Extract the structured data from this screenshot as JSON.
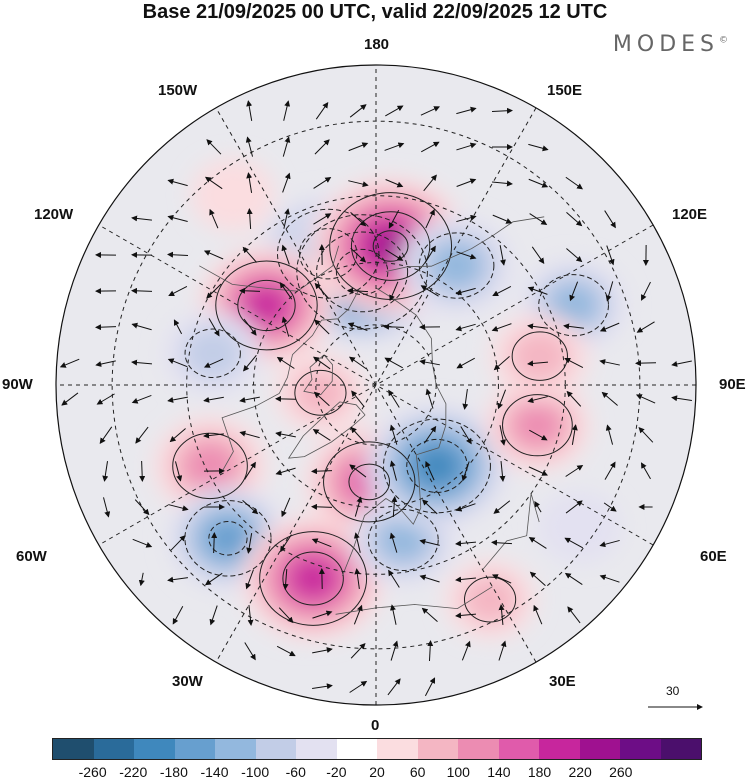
{
  "title": "Base 21/09/2025 00 UTC, valid 22/09/2025 12 UTC",
  "brand": "MODES",
  "brand_mark": "©",
  "longitude_labels": {
    "lon_180": "180",
    "lon_150w": "150W",
    "lon_150e": "150E",
    "lon_120w": "120W",
    "lon_120e": "120E",
    "lon_90w": "90W",
    "lon_90e": "90E",
    "lon_60w": "60W",
    "lon_60e": "60E",
    "lon_30w": "30W",
    "lon_30e": "30E",
    "lon_0": "0"
  },
  "vector_scale": "30",
  "colorbar": {
    "colors": [
      "#1f4e6e",
      "#2a6b9a",
      "#3f88bd",
      "#679fcf",
      "#93b8de",
      "#c2cde7",
      "#e3e1f1",
      "#ffffff",
      "#fbdde0",
      "#f4b6c3",
      "#ec8cb2",
      "#e05bab",
      "#c7269d",
      "#9f1190",
      "#6d0d86",
      "#4b0f6c"
    ],
    "ticks": [
      "-260",
      "-220",
      "-180",
      "-140",
      "-100",
      "-60",
      "-20",
      "20",
      "60",
      "100",
      "140",
      "180",
      "220",
      "260"
    ]
  },
  "anomaly_centers": [
    {
      "lon": -160,
      "lat": 56,
      "value": -180
    },
    {
      "lon": -173,
      "lat": 62,
      "value": -260
    },
    {
      "lon": 174,
      "lat": 56,
      "value": 240
    },
    {
      "lon": 146,
      "lat": 55,
      "value": -120
    },
    {
      "lon": 112,
      "lat": 40,
      "value": -100
    },
    {
      "lon": -126,
      "lat": 57,
      "value": 180
    },
    {
      "lon": -143,
      "lat": 35,
      "value": 40
    },
    {
      "lon": -101,
      "lat": 50,
      "value": -80
    },
    {
      "lon": -82,
      "lat": 76,
      "value": 60
    },
    {
      "lon": -64,
      "lat": 46,
      "value": 120
    },
    {
      "lon": -44,
      "lat": 40,
      "value": -140
    },
    {
      "lon": -18,
      "lat": 42,
      "value": 200
    },
    {
      "lon": -4,
      "lat": 66,
      "value": 160
    },
    {
      "lon": 10,
      "lat": 52,
      "value": -100
    },
    {
      "lon": 37,
      "lat": 65,
      "value": -200
    },
    {
      "lon": 76,
      "lat": 50,
      "value": 100
    },
    {
      "lon": 100,
      "lat": 50,
      "value": 80
    },
    {
      "lon": 28,
      "lat": 34,
      "value": 60
    },
    {
      "lon": 55,
      "lat": 33,
      "value": -40
    }
  ]
}
